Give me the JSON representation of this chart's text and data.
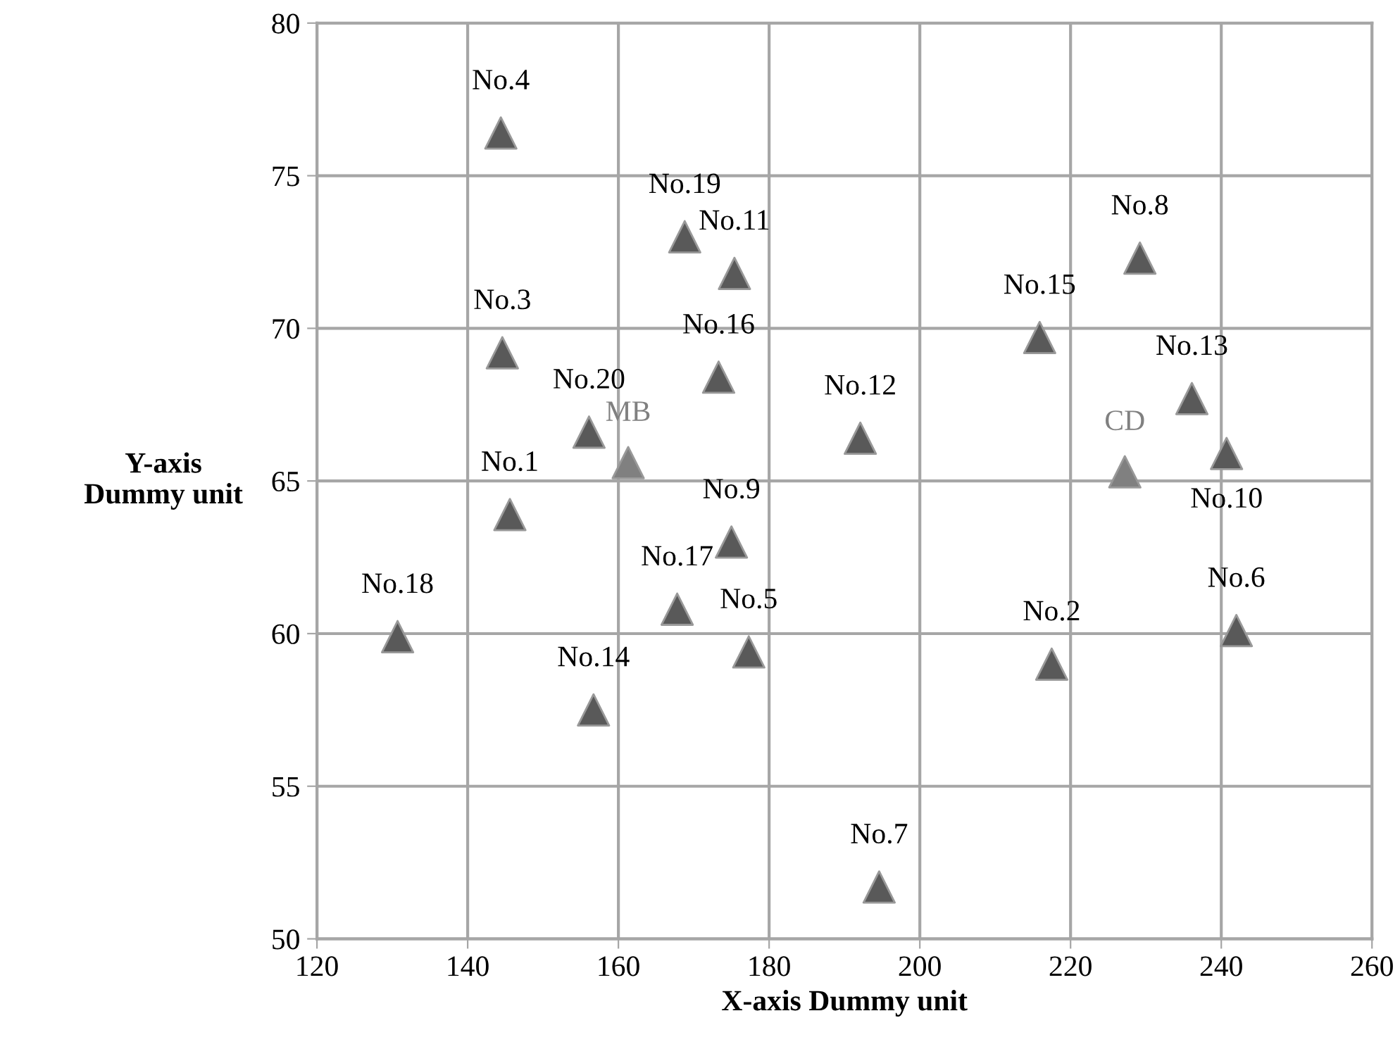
{
  "chart_data": {
    "type": "scatter",
    "xlabel": "X-axis Dummy unit",
    "ylabel": "Y-axis\nDummy unit",
    "xlim": [
      120,
      260
    ],
    "xticks": [
      120,
      140,
      160,
      180,
      200,
      220,
      240,
      260
    ],
    "ylim": [
      50,
      80
    ],
    "yticks": [
      50,
      55,
      60,
      65,
      70,
      75,
      80
    ],
    "grid": true,
    "marker": "triangle",
    "series": [
      {
        "color": "#595959",
        "x": [
          145.6,
          217.5,
          144.6,
          144.4,
          177.3,
          242.0,
          194.6,
          229.2,
          175.0,
          240.7,
          175.4,
          192.1,
          236.1,
          156.7,
          215.9,
          173.3,
          167.8,
          130.7,
          168.8,
          156.1
        ],
        "values": [
          63.9,
          59.0,
          69.2,
          76.4,
          59.4,
          60.1,
          51.7,
          72.3,
          63.0,
          65.9,
          71.8,
          66.4,
          67.7,
          57.5,
          69.7,
          68.4,
          60.8,
          59.9,
          73.0,
          66.6
        ]
      },
      {
        "name": "MB",
        "color": "#808080",
        "x": [
          161.3
        ],
        "values": [
          65.6
        ]
      },
      {
        "name": "CD",
        "color": "#808080",
        "x": [
          227.2
        ],
        "values": [
          65.3
        ]
      }
    ],
    "annotations": [
      {
        "text": "No.1",
        "x": 145.6,
        "y": 63.9
      },
      {
        "text": "No.2",
        "x": 217.5,
        "y": 59.0
      },
      {
        "text": "No.3",
        "x": 144.6,
        "y": 69.2
      },
      {
        "text": "No.4",
        "x": 144.4,
        "y": 76.4
      },
      {
        "text": "No.5",
        "x": 177.3,
        "y": 59.4
      },
      {
        "text": "No.6",
        "x": 242.0,
        "y": 60.1
      },
      {
        "text": "No.7",
        "x": 194.6,
        "y": 51.7
      },
      {
        "text": "No.8",
        "x": 229.2,
        "y": 72.3
      },
      {
        "text": "No.9",
        "x": 175.0,
        "y": 63.0
      },
      {
        "text": "No.10",
        "x": 240.7,
        "y": 65.9
      },
      {
        "text": "No.11",
        "x": 175.4,
        "y": 71.8
      },
      {
        "text": "No.12",
        "x": 192.1,
        "y": 66.4
      },
      {
        "text": "No.13",
        "x": 236.1,
        "y": 67.7
      },
      {
        "text": "No.14",
        "x": 156.7,
        "y": 57.5
      },
      {
        "text": "No.15",
        "x": 215.9,
        "y": 69.7
      },
      {
        "text": "No.16",
        "x": 173.3,
        "y": 68.4
      },
      {
        "text": "No.17",
        "x": 167.8,
        "y": 60.8
      },
      {
        "text": "No.18",
        "x": 130.7,
        "y": 59.9
      },
      {
        "text": "No.19",
        "x": 168.8,
        "y": 73.0
      },
      {
        "text": "No.20",
        "x": 156.1,
        "y": 66.6
      }
    ]
  }
}
